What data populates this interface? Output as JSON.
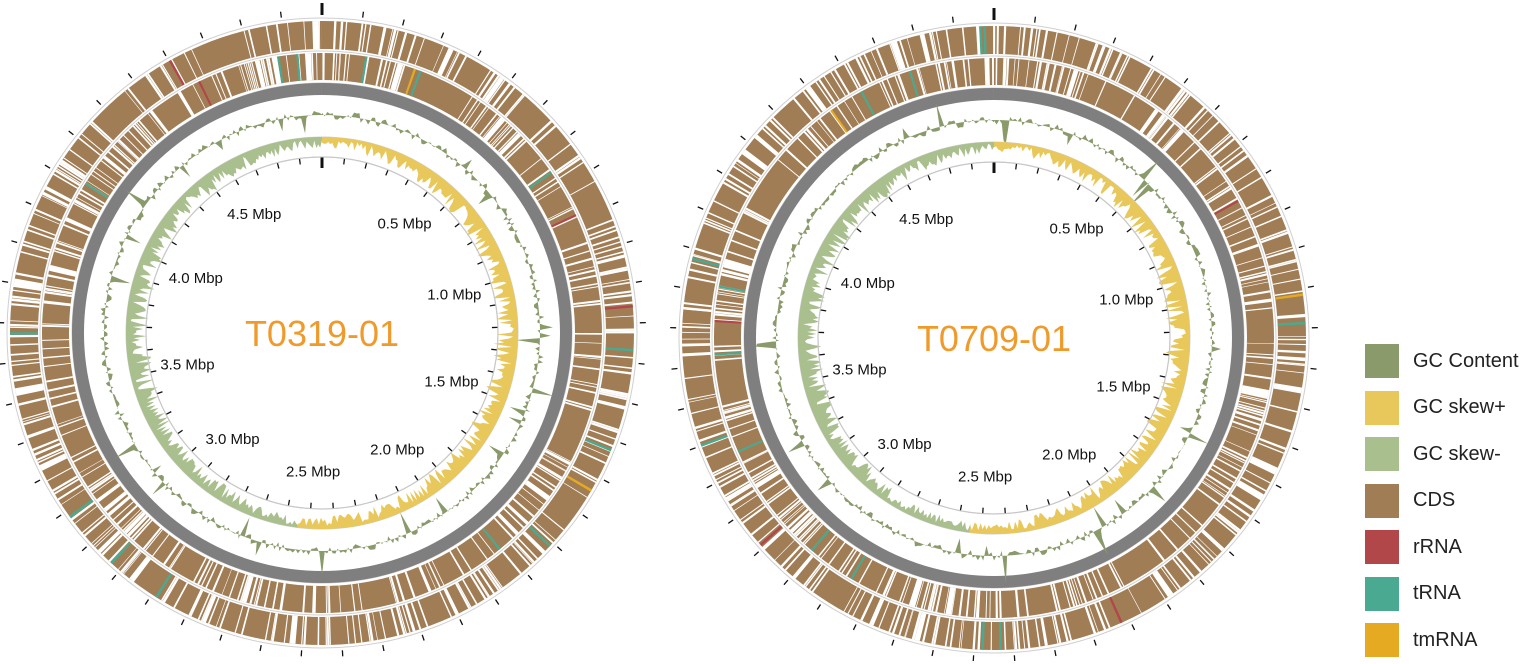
{
  "colors": {
    "gc_content": "#8a9a6b",
    "gc_skew_pos": "#e8c85a",
    "gc_skew_neg": "#a9bf8e",
    "cds": "#a17d55",
    "rrna": "#b2474a",
    "trna": "#4aaa91",
    "tmrna": "#e5aa22",
    "backbone": "#7f7f7f",
    "track_line": "#cfcfcf",
    "title": "#ef9a2a"
  },
  "genome_maps": [
    {
      "title": "T0319-01",
      "tick_labels": [
        "0.5 Mbp",
        "1.0 Mbp",
        "1.5 Mbp",
        "2.0 Mbp",
        "2.5 Mbp",
        "3.0 Mbp",
        "3.5 Mbp",
        "4.0 Mbp",
        "4.5 Mbp"
      ],
      "seed": 11
    },
    {
      "title": "T0709-01",
      "tick_labels": [
        "0.5 Mbp",
        "1.0 Mbp",
        "1.5 Mbp",
        "2.0 Mbp",
        "2.5 Mbp",
        "3.0 Mbp",
        "3.5 Mbp",
        "4.0 Mbp",
        "4.5 Mbp"
      ],
      "seed": 29
    }
  ],
  "legend": [
    {
      "label": "GC Content",
      "color": "#8a9a6b",
      "icon": "gc-content-swatch"
    },
    {
      "label": "GC skew+",
      "color": "#e8c85a",
      "icon": "gc-skew-positive-swatch"
    },
    {
      "label": "GC skew-",
      "color": "#a9bf8e",
      "icon": "gc-skew-negative-swatch"
    },
    {
      "label": "CDS",
      "color": "#a17d55",
      "icon": "cds-swatch"
    },
    {
      "label": "rRNA",
      "color": "#b2474a",
      "icon": "rrna-swatch"
    },
    {
      "label": "tRNA",
      "color": "#4aaa91",
      "icon": "trna-swatch"
    },
    {
      "label": "tmRNA",
      "color": "#e5aa22",
      "icon": "tmrna-swatch"
    }
  ]
}
